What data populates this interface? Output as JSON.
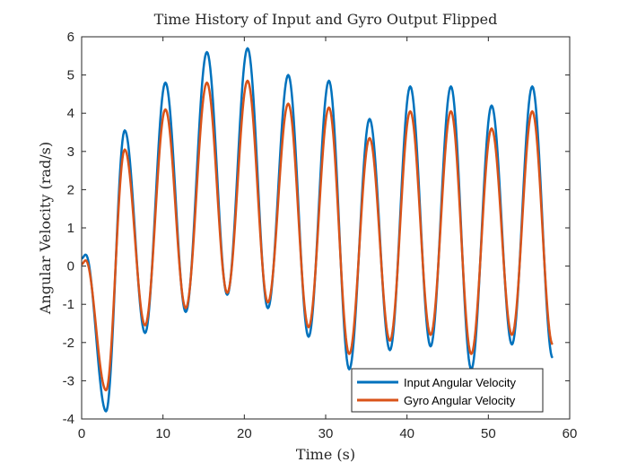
{
  "chart_data": {
    "type": "line",
    "title": "Time History of Input and Gyro Output Flipped",
    "xlabel": "Time (s)",
    "ylabel": "Angular Velocity (rad/s)",
    "xlim": [
      0,
      60
    ],
    "ylim": [
      -4,
      6
    ],
    "xticks": [
      0,
      10,
      20,
      30,
      40,
      50,
      60
    ],
    "yticks": [
      -4,
      -3,
      -2,
      -1,
      0,
      1,
      2,
      3,
      4,
      5,
      6
    ],
    "grid": false,
    "legend_position": "bottom-right",
    "series": [
      {
        "name": "Input Angular Velocity",
        "color": "#0072BD",
        "x": [
          0,
          0.5,
          3.0,
          5.3,
          7.8,
          10.3,
          12.8,
          15.4,
          17.9,
          20.4,
          22.9,
          25.4,
          27.9,
          30.4,
          32.9,
          35.4,
          37.9,
          40.4,
          42.9,
          45.4,
          47.9,
          50.4,
          52.9,
          55.4,
          57.9
        ],
        "values": [
          0.2,
          0.3,
          -3.8,
          3.55,
          -1.75,
          4.8,
          -1.2,
          5.6,
          -0.75,
          5.7,
          -1.1,
          5.0,
          -1.85,
          4.85,
          -2.7,
          3.85,
          -2.2,
          4.7,
          -2.1,
          4.7,
          -2.7,
          4.2,
          -2.05,
          4.7,
          -2.4
        ]
      },
      {
        "name": "Gyro Angular Velocity",
        "color": "#D95319",
        "x": [
          0,
          0.5,
          3.0,
          5.3,
          7.8,
          10.3,
          12.8,
          15.4,
          17.9,
          20.4,
          22.9,
          25.4,
          27.9,
          30.4,
          32.9,
          35.4,
          37.9,
          40.4,
          42.9,
          45.4,
          47.9,
          50.4,
          52.9,
          55.4,
          57.9
        ],
        "values": [
          0.05,
          0.15,
          -3.25,
          3.05,
          -1.55,
          4.1,
          -1.1,
          4.8,
          -0.7,
          4.85,
          -0.95,
          4.25,
          -1.6,
          4.15,
          -2.3,
          3.35,
          -1.95,
          4.05,
          -1.8,
          4.05,
          -2.3,
          3.6,
          -1.8,
          4.05,
          -2.05
        ]
      }
    ]
  }
}
